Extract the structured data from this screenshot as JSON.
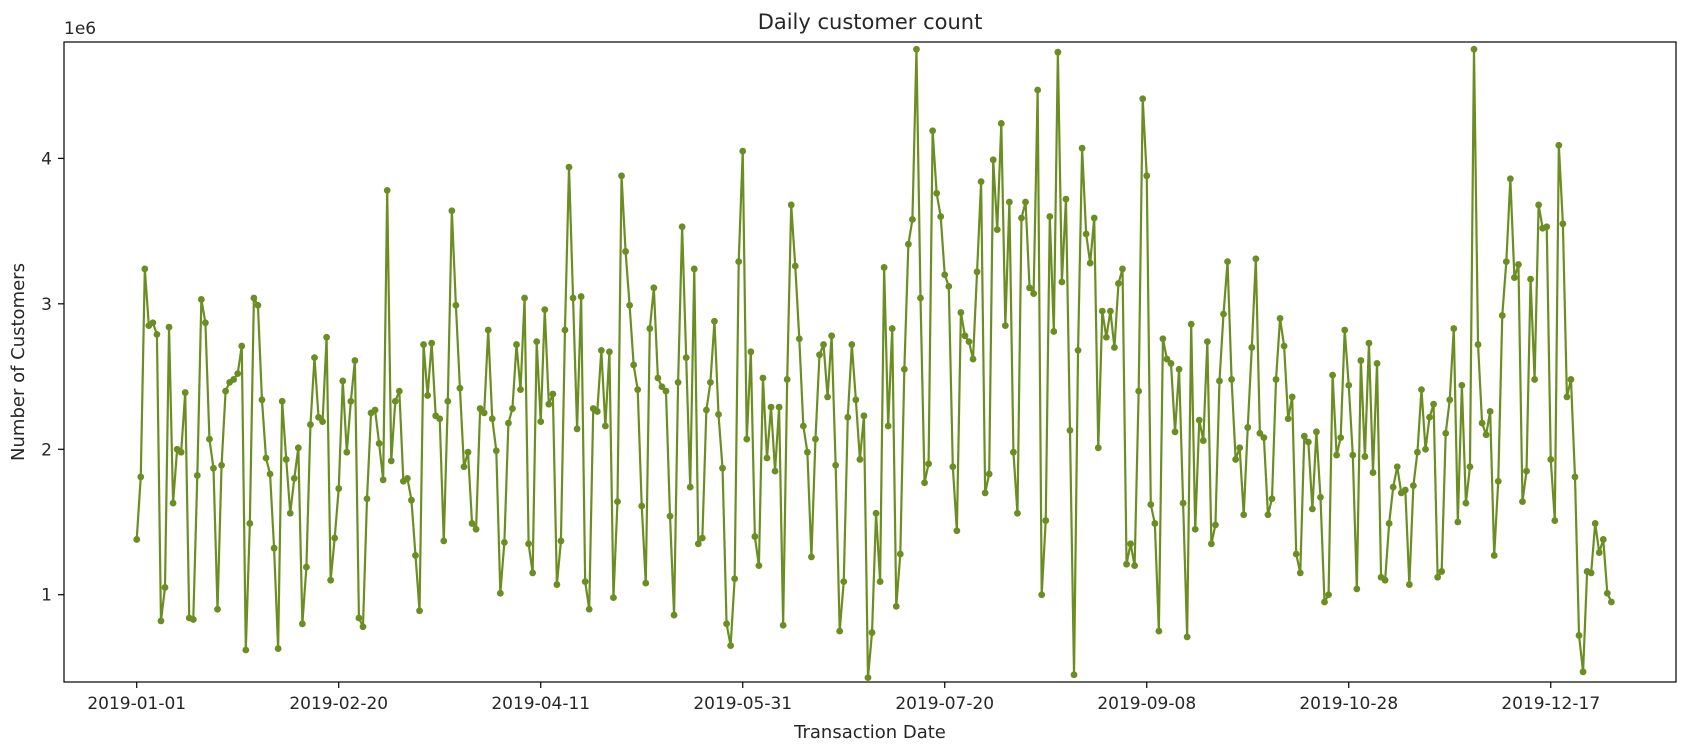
{
  "chart_data": {
    "type": "line",
    "title": "Daily customer count",
    "xlabel": "Transaction Date",
    "ylabel": "Number of Customers",
    "y_multiplier_label": "1e6",
    "series_color": "#6b8e23",
    "x_tick_labels": [
      "2019-01-01",
      "2019-02-20",
      "2019-04-11",
      "2019-05-31",
      "2019-07-20",
      "2019-09-08",
      "2019-10-28",
      "2019-12-17"
    ],
    "y_tick_labels": [
      "1",
      "2",
      "3",
      "4"
    ],
    "x_start": "2019-01-01",
    "x_end": "2019-12-31",
    "xlim": [
      "2018-12-14",
      "2020-01-17"
    ],
    "ylim": [
      0.4,
      4.8
    ],
    "grid": false,
    "legend": "none",
    "series": [
      {
        "values": [
          1.38,
          1.81,
          3.24,
          2.85,
          2.87,
          2.79,
          0.82,
          1.05,
          2.84,
          1.63,
          2.0,
          1.98,
          2.39,
          0.84,
          0.83,
          1.82,
          3.03,
          2.87,
          2.07,
          1.87,
          0.9,
          1.89,
          2.4,
          2.46,
          2.48,
          2.52,
          2.71,
          0.62,
          1.49,
          3.04,
          2.99,
          2.34,
          1.94,
          1.83,
          1.32,
          0.63,
          2.33,
          1.93,
          1.56,
          1.8,
          2.01,
          0.8,
          1.19,
          2.17,
          2.63,
          2.22,
          2.19,
          2.77,
          1.1,
          1.39,
          1.73,
          2.47,
          1.98,
          2.33,
          2.61,
          0.84,
          0.78,
          1.66,
          2.25,
          2.27,
          2.04,
          1.79,
          3.78,
          1.92,
          2.33,
          2.4,
          1.78,
          1.8,
          1.65,
          1.27,
          0.89,
          2.72,
          2.37,
          2.73,
          2.23,
          2.21,
          1.37,
          2.33,
          3.64,
          2.99,
          2.42,
          1.88,
          1.98,
          1.49,
          1.45,
          2.28,
          2.25,
          2.82,
          2.21,
          1.99,
          1.01,
          1.36,
          2.18,
          2.28,
          2.72,
          2.41,
          3.04,
          1.35,
          1.15,
          2.74,
          2.19,
          2.96,
          2.31,
          2.38,
          1.07,
          1.37,
          2.82,
          3.94,
          3.04,
          2.14,
          3.05,
          1.09,
          0.9,
          2.28,
          2.26,
          2.68,
          2.16,
          2.67,
          0.98,
          1.64,
          3.88,
          3.36,
          2.99,
          2.58,
          2.41,
          1.61,
          1.08,
          2.83,
          3.11,
          2.49,
          2.43,
          2.4,
          1.54,
          0.86,
          2.46,
          3.53,
          2.63,
          1.74,
          3.24,
          1.35,
          1.39,
          2.27,
          2.46,
          2.88,
          2.24,
          1.87,
          0.8,
          0.65,
          1.11,
          3.29,
          4.05,
          2.07,
          2.67,
          1.4,
          1.2,
          2.49,
          1.94,
          2.29,
          1.85,
          2.29,
          0.79,
          2.48,
          3.68,
          3.26,
          2.76,
          2.16,
          1.98,
          1.26,
          2.07,
          2.65,
          2.72,
          2.36,
          2.78,
          1.89,
          0.75,
          1.09,
          2.22,
          2.72,
          2.34,
          1.93,
          2.23,
          0.43,
          0.74,
          1.56,
          1.09,
          3.25,
          2.16,
          2.83,
          0.92,
          1.28,
          2.55,
          3.41,
          3.58,
          4.75,
          3.04,
          1.77,
          1.9,
          4.19,
          3.76,
          3.6,
          3.2,
          3.12,
          1.88,
          1.44,
          2.94,
          2.78,
          2.74,
          2.62,
          3.22,
          3.84,
          1.7,
          1.83,
          3.99,
          3.51,
          4.24,
          2.85,
          3.7,
          1.98,
          1.56,
          3.59,
          3.7,
          3.11,
          3.07,
          4.47,
          1.0,
          1.51,
          3.6,
          2.81,
          4.73,
          3.15,
          3.72,
          2.13,
          0.45,
          2.68,
          4.07,
          3.48,
          3.28,
          3.59,
          2.01,
          2.95,
          2.77,
          2.95,
          2.7,
          3.14,
          3.24,
          1.21,
          1.35,
          1.2,
          2.4,
          4.41,
          3.88,
          1.62,
          1.49,
          0.75,
          2.76,
          2.62,
          2.59,
          2.12,
          2.55,
          1.63,
          0.71,
          2.86,
          1.45,
          2.2,
          2.06,
          2.74,
          1.35,
          1.48,
          2.47,
          2.93,
          3.29,
          2.48,
          1.93,
          2.01,
          1.55,
          2.15,
          2.7,
          3.31,
          2.11,
          2.08,
          1.55,
          1.66,
          2.48,
          2.9,
          2.71,
          2.21,
          2.36,
          1.28,
          1.15,
          2.09,
          2.05,
          1.59,
          2.12,
          1.67,
          0.95,
          1.0,
          2.51,
          1.96,
          2.08,
          2.82,
          2.44,
          1.96,
          1.04,
          2.61,
          1.95,
          2.73,
          1.84,
          2.59,
          1.12,
          1.1,
          1.49,
          1.74,
          1.88,
          1.7,
          1.72,
          1.07,
          1.75,
          1.98,
          2.41,
          2.0,
          2.22,
          2.31,
          1.12,
          1.16,
          2.11,
          2.34,
          2.83,
          1.5,
          2.44,
          1.63,
          1.88,
          4.75,
          2.72,
          2.18,
          2.1,
          2.26,
          1.27,
          1.78,
          2.92,
          3.29,
          3.86,
          3.18,
          3.27,
          1.64,
          1.85,
          3.17,
          2.48,
          3.68,
          3.52,
          3.53,
          1.93,
          1.51,
          4.09,
          3.55,
          2.36,
          2.48,
          1.81,
          0.72,
          0.47,
          1.16,
          1.15,
          1.49,
          1.29,
          1.38,
          1.01,
          0.95
        ]
      }
    ]
  }
}
